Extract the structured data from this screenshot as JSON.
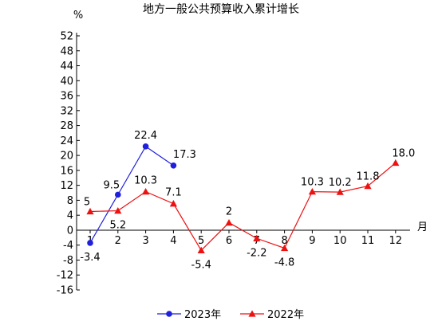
{
  "chart_data": {
    "type": "line",
    "title": "地方一般公共预算收入累计增长",
    "ylabel": "%",
    "xlabel": "月",
    "categories": [
      "1",
      "2",
      "3",
      "4",
      "5",
      "6",
      "7",
      "8",
      "9",
      "10",
      "11",
      "12"
    ],
    "ylim": [
      -16,
      52
    ],
    "yticks": [
      52,
      48,
      44,
      40,
      36,
      32,
      28,
      24,
      20,
      16,
      12,
      8,
      4,
      0,
      -4,
      -8,
      -12,
      -16
    ],
    "grid": false,
    "legend_position": "bottom",
    "series": [
      {
        "name": "2023年",
        "color": "#1f1fdd",
        "marker": "circle",
        "values": [
          -3.4,
          9.5,
          22.4,
          17.3,
          null,
          null,
          null,
          null,
          null,
          null,
          null,
          null
        ],
        "labels": [
          "-3.4",
          "9.5",
          "22.4",
          "17.3",
          "",
          "",
          "",
          "",
          "",
          "",
          "",
          ""
        ]
      },
      {
        "name": "2022年",
        "color": "#ee1111",
        "marker": "triangle",
        "values": [
          5,
          5.2,
          10.3,
          7.1,
          -5.4,
          2,
          -2.2,
          -4.8,
          10.3,
          10.2,
          11.8,
          18.0
        ],
        "labels": [
          "5",
          "5.2",
          "10.3",
          "7.1",
          "-5.4",
          "2",
          "-2.2",
          "-4.8",
          "10.3",
          "10.2",
          "11.8",
          "18.0"
        ]
      }
    ]
  }
}
